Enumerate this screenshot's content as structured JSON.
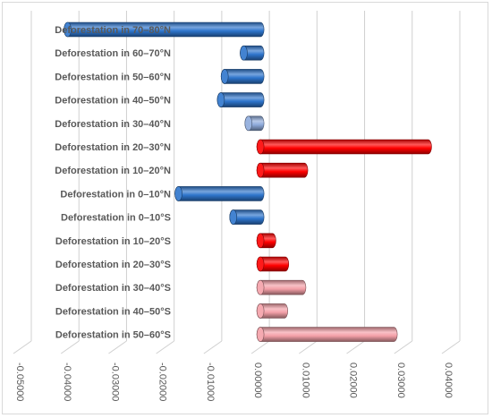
{
  "chart_data": {
    "type": "bar",
    "orientation": "horizontal",
    "style": "3d-cylinder",
    "categories": [
      "Deforestation in 70–80°N",
      "Deforestation in 60–70°N",
      "Deforestation in 50–60°N",
      "Deforestation in 40–50°N",
      "Deforestation in 30–40°N",
      "Deforestation in 20–30°N",
      "Deforestation in 10–20°N",
      "Deforestation in 0–10°N",
      "Deforestation in 0–10°S",
      "Deforestation in 10–20°S",
      "Deforestation in 20–30°S",
      "Deforestation in 30–40°S",
      "Deforestation in 40–50°S",
      "Deforestation in 50–60°S"
    ],
    "values": [
      -0.0405,
      -0.0035,
      -0.0075,
      -0.0083,
      -0.0025,
      0.0352,
      0.0092,
      -0.0172,
      -0.0057,
      0.0025,
      0.0052,
      0.0088,
      0.005,
      0.028
    ],
    "bar_colors": [
      "#2e75cc",
      "#2e75cc",
      "#2e75cc",
      "#2e75cc",
      "#8eaadb",
      "#ff0000",
      "#ff0000",
      "#2e75cc",
      "#2e75cc",
      "#ff0000",
      "#ff0000",
      "#f4a0a8",
      "#f4a0a8",
      "#f4a0a8"
    ],
    "xticks": [
      -0.05,
      -0.04,
      -0.03,
      -0.02,
      -0.01,
      0.0,
      0.01,
      0.02,
      0.03,
      0.04
    ],
    "xtick_labels": [
      "-0.05000",
      "-0.04000",
      "-0.03000",
      "-0.02000",
      "-0.01000",
      "0.00000",
      "0.01000",
      "0.02000",
      "0.03000",
      "0.04000"
    ],
    "xlim": [
      -0.05,
      0.04
    ],
    "grid": true,
    "title": "",
    "xlabel": "",
    "ylabel": ""
  }
}
